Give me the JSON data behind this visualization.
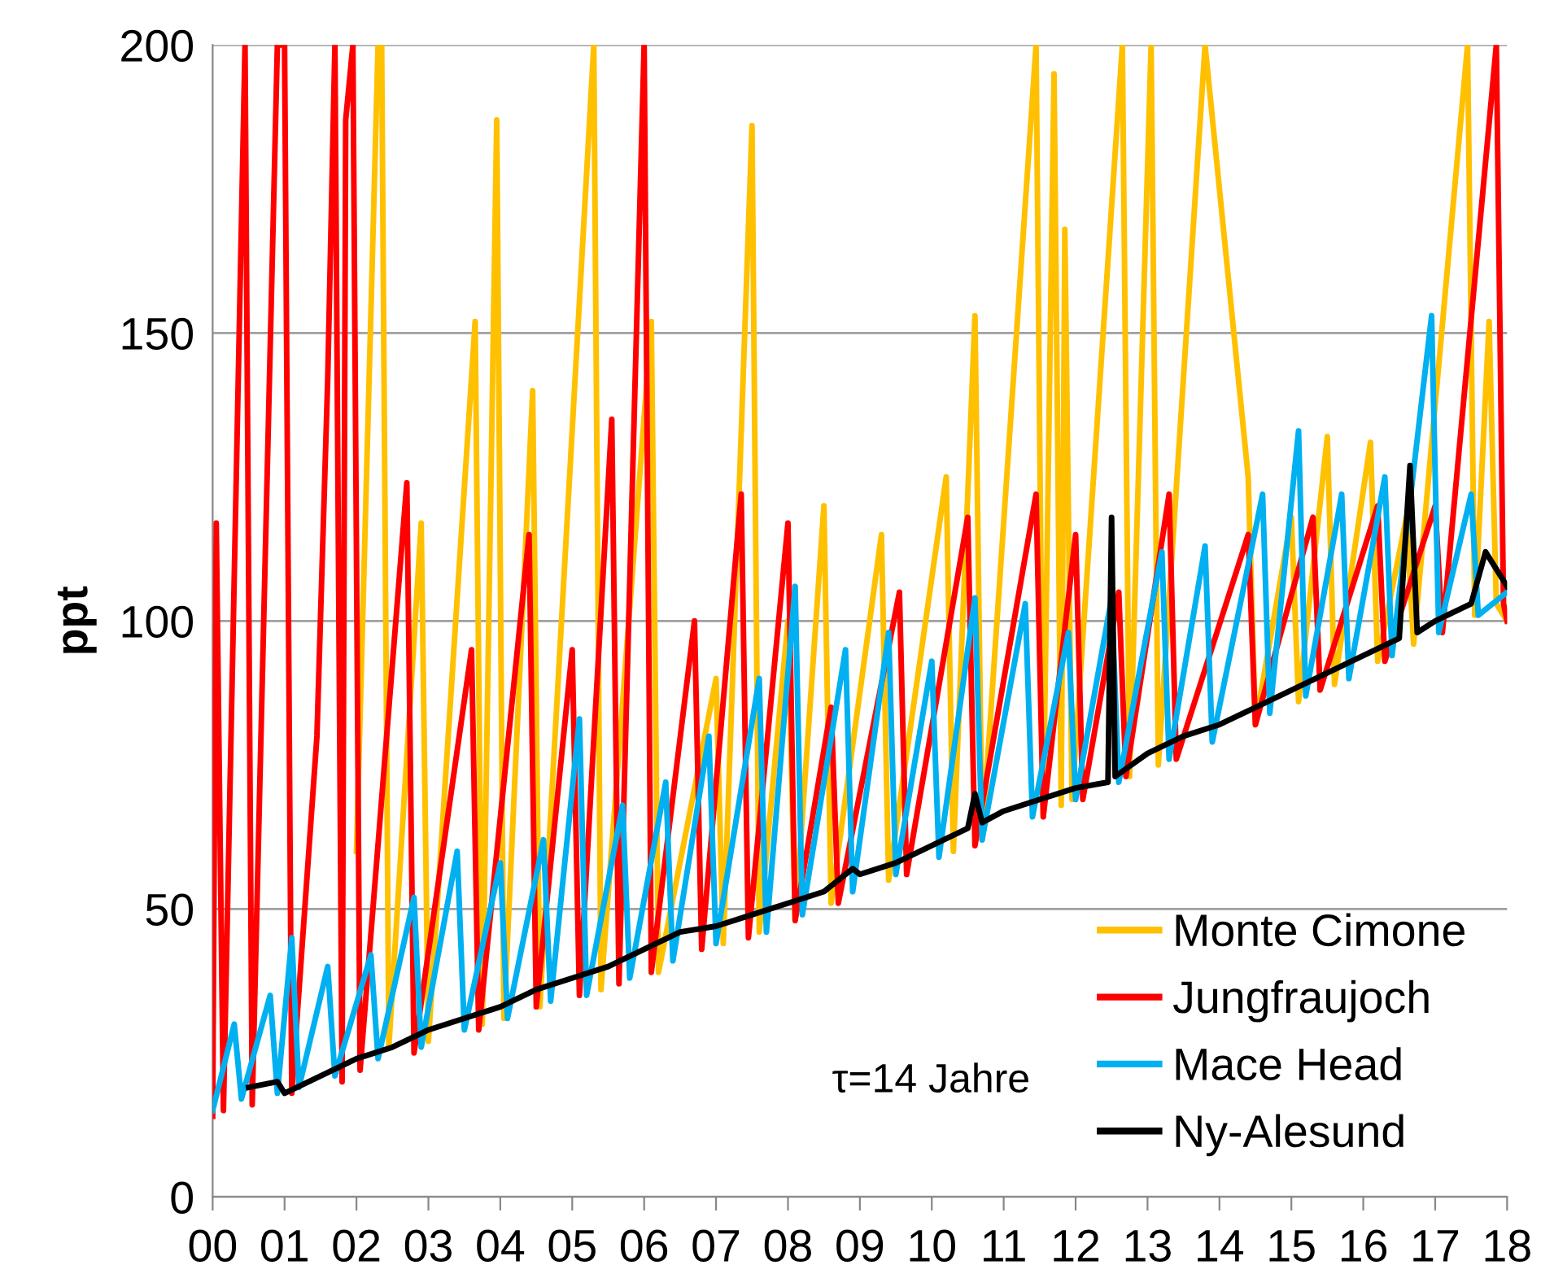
{
  "chart_data": {
    "type": "line",
    "ylabel": "ppt",
    "xlim": [
      0,
      18
    ],
    "ylim": [
      0,
      200
    ],
    "xticks": [
      {
        "value": 0,
        "label": "00"
      },
      {
        "value": 1,
        "label": "01"
      },
      {
        "value": 2,
        "label": "02"
      },
      {
        "value": 3,
        "label": "03"
      },
      {
        "value": 4,
        "label": "04"
      },
      {
        "value": 5,
        "label": "05"
      },
      {
        "value": 6,
        "label": "06"
      },
      {
        "value": 7,
        "label": "07"
      },
      {
        "value": 8,
        "label": "08"
      },
      {
        "value": 9,
        "label": "09"
      },
      {
        "value": 10,
        "label": "10"
      },
      {
        "value": 11,
        "label": "11"
      },
      {
        "value": 12,
        "label": "12"
      },
      {
        "value": 13,
        "label": "13"
      },
      {
        "value": 14,
        "label": "14"
      },
      {
        "value": 15,
        "label": "15"
      },
      {
        "value": 16,
        "label": "16"
      },
      {
        "value": 17,
        "label": "17"
      },
      {
        "value": 18,
        "label": "18"
      }
    ],
    "yticks": [
      0,
      50,
      100,
      150,
      200
    ],
    "grid": "y",
    "legend": "bottom right",
    "marker": "none",
    "line_style": "solid",
    "annotations": [
      "τ=14 Jahre"
    ],
    "series": [
      {
        "name": "Monte Cimone",
        "color": "#ffc000",
        "x": [
          2.0,
          2.3,
          2.35,
          2.45,
          2.9,
          3.0,
          3.65,
          3.75,
          3.95,
          4.05,
          4.45,
          4.55,
          5.3,
          5.4,
          6.1,
          6.2,
          7.0,
          7.1,
          7.5,
          7.6,
          8.0,
          8.1,
          8.5,
          8.6,
          9.3,
          9.4,
          10.2,
          10.3,
          10.6,
          10.7,
          11.45,
          11.55,
          11.7,
          11.8,
          11.85,
          11.95,
          12.65,
          12.75,
          13.05,
          13.15,
          13.8,
          14.4,
          14.5,
          15.0,
          15.1,
          15.5,
          15.6,
          16.1,
          16.2,
          16.6,
          16.7,
          17.45,
          17.55,
          17.75,
          17.85,
          18.0
        ],
        "values": [
          60,
          200,
          200,
          26,
          117,
          27,
          152,
          30,
          187,
          31,
          140,
          33,
          200,
          36,
          152,
          39,
          90,
          44,
          186,
          46,
          100,
          48,
          120,
          51,
          115,
          55,
          125,
          60,
          153,
          62,
          200,
          66,
          195,
          68,
          168,
          69,
          200,
          73,
          200,
          75,
          200,
          125,
          82,
          118,
          86,
          132,
          89,
          131,
          93,
          118,
          96,
          200,
          101,
          152,
          103,
          100
        ]
      },
      {
        "name": "Jungfraujoch",
        "color": "#ff0000",
        "x": [
          0,
          0.05,
          0.15,
          0.45,
          0.55,
          0.9,
          1.0,
          1.1,
          1.45,
          1.6,
          1.7,
          1.8,
          1.85,
          1.95,
          2.05,
          2.7,
          2.8,
          3.6,
          3.7,
          4.4,
          4.5,
          5.0,
          5.1,
          5.55,
          5.65,
          6.0,
          6.1,
          6.7,
          6.8,
          7.35,
          7.45,
          8.0,
          8.1,
          8.6,
          8.7,
          9.55,
          9.65,
          10.5,
          10.6,
          11.45,
          11.55,
          12.0,
          12.1,
          12.6,
          12.7,
          13.3,
          13.4,
          14.4,
          14.5,
          15.3,
          15.4,
          16.2,
          16.3,
          17.0,
          17.1,
          17.85,
          17.95,
          18.0
        ],
        "values": [
          14,
          117,
          15,
          200,
          16,
          200,
          200,
          18,
          80,
          142,
          200,
          20,
          187,
          200,
          22,
          124,
          25,
          95,
          29,
          115,
          33,
          95,
          35,
          135,
          37,
          200,
          39,
          100,
          43,
          122,
          45,
          117,
          48,
          85,
          51,
          105,
          56,
          118,
          61,
          122,
          66,
          115,
          69,
          105,
          73,
          122,
          76,
          115,
          82,
          118,
          88,
          120,
          93,
          120,
          98,
          200,
          103,
          100
        ]
      },
      {
        "name": "Mace Head",
        "color": "#00b0f0",
        "x": [
          0,
          0.3,
          0.4,
          0.8,
          0.9,
          1.1,
          1.2,
          1.6,
          1.7,
          2.2,
          2.3,
          2.8,
          2.9,
          3.4,
          3.5,
          4.0,
          4.1,
          4.6,
          4.7,
          5.1,
          5.2,
          5.7,
          5.8,
          6.3,
          6.4,
          6.9,
          7.0,
          7.6,
          7.7,
          8.1,
          8.2,
          8.8,
          8.9,
          9.4,
          9.5,
          10.0,
          10.1,
          10.6,
          10.7,
          11.3,
          11.4,
          11.9,
          12.0,
          12.5,
          12.6,
          13.2,
          13.3,
          13.8,
          13.9,
          14.6,
          14.7,
          15.1,
          15.2,
          15.7,
          15.8,
          16.3,
          16.4,
          16.95,
          17.05,
          17.5,
          17.6,
          18.0
        ],
        "values": [
          15,
          30,
          17,
          35,
          18,
          45,
          19,
          40,
          21,
          42,
          24,
          52,
          26,
          60,
          29,
          58,
          31,
          62,
          34,
          83,
          35,
          68,
          38,
          72,
          41,
          80,
          44,
          90,
          46,
          106,
          49,
          95,
          53,
          98,
          56,
          93,
          59,
          104,
          62,
          103,
          66,
          98,
          69,
          104,
          72,
          112,
          76,
          113,
          79,
          122,
          84,
          133,
          87,
          122,
          90,
          125,
          94,
          153,
          98,
          122,
          101,
          105
        ]
      },
      {
        "name": "Ny-Alesund",
        "color": "#000000",
        "x": [
          0.5,
          0.9,
          1.0,
          1.5,
          2.0,
          2.5,
          3.0,
          3.5,
          4.0,
          4.5,
          5.0,
          5.5,
          6.0,
          6.5,
          7.0,
          7.5,
          8.0,
          8.5,
          8.9,
          9.0,
          9.5,
          10.0,
          10.5,
          10.6,
          10.7,
          11.0,
          11.5,
          12.0,
          12.45,
          12.5,
          12.55,
          13.0,
          13.5,
          14.0,
          14.5,
          15.0,
          15.5,
          16.0,
          16.5,
          16.65,
          16.75,
          17.0,
          17.5,
          17.7,
          18.0
        ],
        "values": [
          19,
          20,
          18,
          21,
          24,
          26,
          29,
          31,
          33,
          36,
          38,
          40,
          43,
          46,
          47,
          49,
          51,
          53,
          57,
          56,
          58,
          61,
          64,
          70,
          65,
          67,
          69,
          71,
          72,
          118,
          73,
          77,
          80,
          82,
          85,
          88,
          91,
          94,
          97,
          127,
          98,
          100,
          103,
          112,
          106
        ]
      }
    ]
  }
}
